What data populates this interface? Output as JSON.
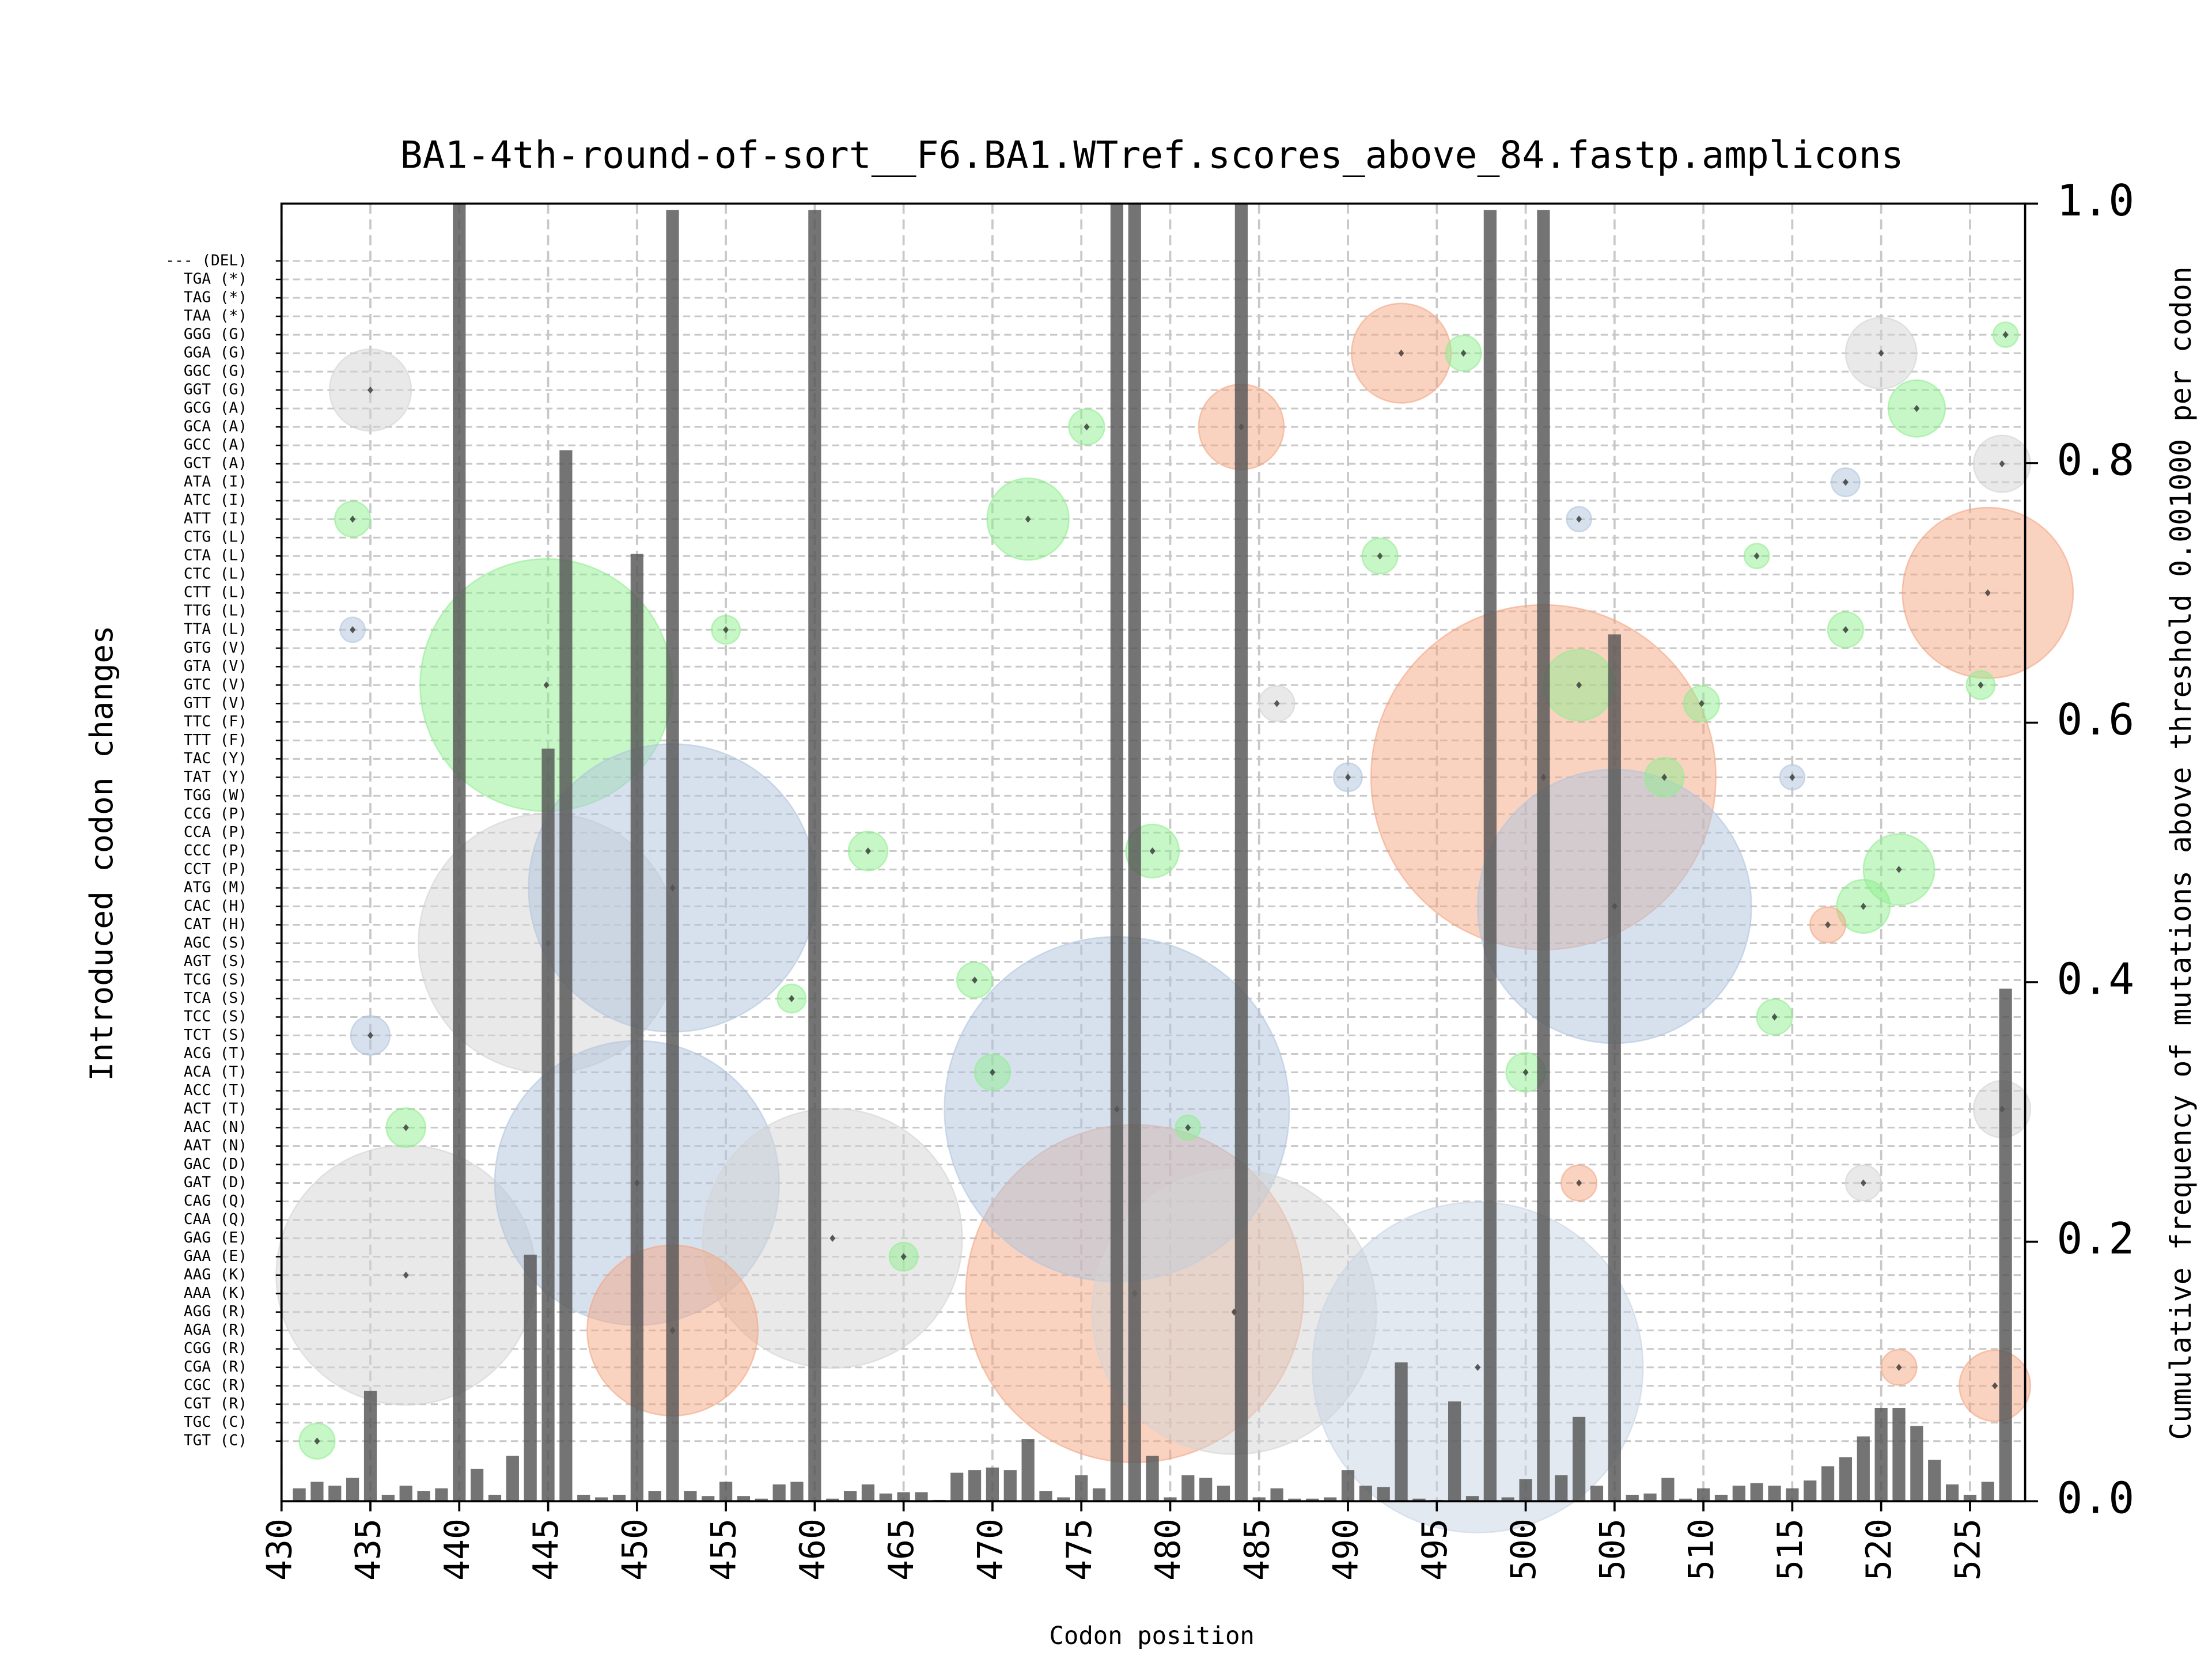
{
  "chart_data": [
    {
      "type": "bar",
      "title": "BA1-4th-round-of-sort__F6.BA1.WTref.scores_above_84.fastp.amplicons",
      "xlabel": "Codon position",
      "ylabel": "Cumulative frequency of mutations above threshold 0.001000 per codon",
      "color": "#555555",
      "x": [
        431,
        432,
        433,
        434,
        435,
        436,
        437,
        438,
        439,
        440,
        441,
        442,
        443,
        444,
        445,
        446,
        447,
        448,
        449,
        450,
        451,
        452,
        453,
        454,
        455,
        456,
        457,
        458,
        459,
        460,
        461,
        462,
        463,
        464,
        465,
        466,
        467,
        468,
        469,
        470,
        471,
        472,
        473,
        474,
        475,
        476,
        477,
        478,
        479,
        480,
        481,
        482,
        483,
        484,
        485,
        486,
        487,
        488,
        489,
        490,
        491,
        492,
        493,
        494,
        495,
        496,
        497,
        498,
        499,
        500,
        501,
        502,
        503,
        504,
        505,
        506,
        507,
        508,
        509,
        510,
        511,
        512,
        513,
        514,
        515,
        516,
        517,
        518,
        519,
        520,
        521,
        522,
        523,
        524,
        525,
        526,
        527
      ],
      "values": [
        0.01,
        0.015,
        0.012,
        0.018,
        0.085,
        0.005,
        0.012,
        0.008,
        0.01,
        1.0,
        0.025,
        0.005,
        0.035,
        0.19,
        0.58,
        0.81,
        0.005,
        0.003,
        0.005,
        0.73,
        0.008,
        0.995,
        0.008,
        0.004,
        0.015,
        0.004,
        0.002,
        0.013,
        0.015,
        0.995,
        0.002,
        0.008,
        0.013,
        0.006,
        0.007,
        0.007,
        0.001,
        0.022,
        0.024,
        0.026,
        0.024,
        0.048,
        0.008,
        0.003,
        0.02,
        0.01,
        1.0,
        1.0,
        0.035,
        0.003,
        0.02,
        0.018,
        0.012,
        1.0,
        0.003,
        0.01,
        0.002,
        0.002,
        0.003,
        0.024,
        0.012,
        0.011,
        0.107,
        0.002,
        0.001,
        0.077,
        0.004,
        0.995,
        0.003,
        0.017,
        0.995,
        0.02,
        0.065,
        0.012,
        0.668,
        0.005,
        0.006,
        0.018,
        0.002,
        0.01,
        0.005,
        0.012,
        0.014,
        0.012,
        0.01,
        0.016,
        0.027,
        0.034,
        0.05,
        0.072,
        0.072,
        0.058,
        0.032,
        0.013,
        0.005,
        0.015,
        0.395
      ],
      "xlim": [
        430,
        528.1
      ],
      "xticks": [
        430,
        435,
        440,
        445,
        450,
        455,
        460,
        465,
        470,
        475,
        480,
        485,
        490,
        495,
        500,
        505,
        510,
        515,
        520,
        525
      ],
      "ylim": [
        0,
        1
      ],
      "yticks": [
        {
          "value": 0,
          "label": "0.0"
        },
        {
          "value": 0.2,
          "label": "0.2"
        },
        {
          "value": 0.4,
          "label": "0.4"
        },
        {
          "value": 0.6,
          "label": "0.6"
        },
        {
          "value": 0.8,
          "label": "0.8"
        },
        {
          "value": 1,
          "label": "1.0"
        }
      ],
      "grid": true
    },
    {
      "type": "scatter",
      "ylabel": "Introduced codon changes",
      "categories": [
        "--- (DEL)",
        "TGA (*)",
        "TAG (*)",
        "TAA (*)",
        "GGG (G)",
        "GGA (G)",
        "GGC (G)",
        "GGT (G)",
        "GCG (A)",
        "GCA (A)",
        "GCC (A)",
        "GCT (A)",
        "ATA (I)",
        "ATC (I)",
        "ATT (I)",
        "CTG (L)",
        "CTA (L)",
        "CTC (L)",
        "CTT (L)",
        "TTG (L)",
        "TTA (L)",
        "GTG (V)",
        "GTA (V)",
        "GTC (V)",
        "GTT (V)",
        "TTC (F)",
        "TTT (F)",
        "TAC (Y)",
        "TAT (Y)",
        "TGG (W)",
        "CCG (P)",
        "CCA (P)",
        "CCC (P)",
        "CCT (P)",
        "ATG (M)",
        "CAC (H)",
        "CAT (H)",
        "AGC (S)",
        "AGT (S)",
        "TCG (S)",
        "TCA (S)",
        "TCC (S)",
        "TCT (S)",
        "ACG (T)",
        "ACA (T)",
        "ACC (T)",
        "ACT (T)",
        "AAC (N)",
        "AAT (N)",
        "GAC (D)",
        "GAT (D)",
        "CAG (Q)",
        "CAA (Q)",
        "GAG (E)",
        "GAA (E)",
        "AAG (K)",
        "AAA (K)",
        "AGG (R)",
        "AGA (R)",
        "CGG (R)",
        "CGA (R)",
        "CGC (R)",
        "CGT (R)",
        "TGC (C)",
        "TGT (C)"
      ],
      "points": [
        {
          "x": 437,
          "codon": "AAG (K)",
          "size": 7.3,
          "color": "#d3d3d3"
        },
        {
          "x": 445,
          "codon": "AGC (S)",
          "size": 7.3,
          "color": "#d3d3d3"
        },
        {
          "x": 450,
          "codon": "GAT (D)",
          "size": 8,
          "color": "#b0c4de"
        },
        {
          "x": 461,
          "codon": "GAG (E)",
          "size": 7.3,
          "color": "#d3d3d3"
        },
        {
          "x": 452,
          "codon": "AGA (R)",
          "size": 4.8,
          "color": "#f4a582"
        },
        {
          "x": 478,
          "codon": "AAA (K)",
          "size": 9.5,
          "color": "#f4a582"
        },
        {
          "x": 477,
          "codon": "ACT (T)",
          "size": 9.7,
          "color": "#b0c4de"
        },
        {
          "x": 483.6,
          "codon": "AGG (R)",
          "size": 8,
          "color": "#d3d3d3"
        },
        {
          "x": 497.3,
          "codon": "CGA (R)",
          "size": 9.3,
          "color": "#c8d4e4"
        },
        {
          "x": 444.9,
          "codon": "GTC (V)",
          "size": 7.1,
          "color": "#90ee90"
        },
        {
          "x": 452,
          "codon": "ATG (M)",
          "size": 8.1,
          "color": "#b0c4de"
        },
        {
          "x": 501,
          "codon": "TAT (Y)",
          "size": 9.7,
          "color": "#f4a582"
        },
        {
          "x": 505,
          "codon": "CAC (H)",
          "size": 7.7,
          "color": "#b0c4de"
        },
        {
          "x": 526,
          "codon": "CTT (L)",
          "size": 4.8,
          "color": "#f4a582"
        },
        {
          "x": 493,
          "codon": "GGA (G)",
          "size": 2.8,
          "color": "#f4a582"
        },
        {
          "x": 484,
          "codon": "GCA (A)",
          "size": 2.4,
          "color": "#f4a582"
        },
        {
          "x": 435,
          "codon": "GGT (G)",
          "size": 2.3,
          "color": "#d3d3d3"
        },
        {
          "x": 503,
          "codon": "GTC (V)",
          "size": 2,
          "color": "#90ee90"
        },
        {
          "x": 472,
          "codon": "ATT (I)",
          "size": 2.3,
          "color": "#90ee90"
        },
        {
          "x": 520,
          "codon": "GGA (G)",
          "size": 2,
          "color": "#d3d3d3"
        },
        {
          "x": 521,
          "codon": "CCT (P)",
          "size": 2,
          "color": "#90ee90"
        },
        {
          "x": 522,
          "codon": "GCG (A)",
          "size": 1.6,
          "color": "#90ee90"
        },
        {
          "x": 526.4,
          "codon": "CGC (R)",
          "size": 2,
          "color": "#f4a582"
        },
        {
          "x": 526.8,
          "codon": "GCT (A)",
          "size": 1.6,
          "color": "#d3d3d3"
        },
        {
          "x": 526.8,
          "codon": "ACT (T)",
          "size": 1.6,
          "color": "#d3d3d3"
        },
        {
          "x": 479,
          "codon": "CCC (P)",
          "size": 1.5,
          "color": "#90ee90"
        },
        {
          "x": 519,
          "codon": "CAC (H)",
          "size": 1.5,
          "color": "#90ee90"
        },
        {
          "x": 437,
          "codon": "AAC (N)",
          "size": 1.1,
          "color": "#90ee90"
        },
        {
          "x": 463,
          "codon": "CCC (P)",
          "size": 1.1,
          "color": "#90ee90"
        },
        {
          "x": 507.8,
          "codon": "TAT (Y)",
          "size": 1.1,
          "color": "#90ee90"
        },
        {
          "x": 509.9,
          "codon": "GTT (V)",
          "size": 1,
          "color": "#90ee90"
        },
        {
          "x": 500,
          "codon": "ACA (T)",
          "size": 1.1,
          "color": "#90ee90"
        },
        {
          "x": 470,
          "codon": "ACA (T)",
          "size": 1,
          "color": "#90ee90"
        },
        {
          "x": 518,
          "codon": "TTA (L)",
          "size": 1,
          "color": "#90ee90"
        },
        {
          "x": 514,
          "codon": "TCC (S)",
          "size": 1,
          "color": "#90ee90"
        },
        {
          "x": 491.8,
          "codon": "CTA (L)",
          "size": 1,
          "color": "#90ee90"
        },
        {
          "x": 455,
          "codon": "TTA (L)",
          "size": 0.8,
          "color": "#90ee90"
        },
        {
          "x": 432,
          "codon": "TGT (C)",
          "size": 1,
          "color": "#90ee90"
        },
        {
          "x": 496.5,
          "codon": "GGA (G)",
          "size": 1,
          "color": "#90ee90"
        },
        {
          "x": 475.3,
          "codon": "GCA (A)",
          "size": 1,
          "color": "#90ee90"
        },
        {
          "x": 503,
          "codon": "GAT (D)",
          "size": 1,
          "color": "#f4a582"
        },
        {
          "x": 521,
          "codon": "CGA (R)",
          "size": 1,
          "color": "#f4a582"
        },
        {
          "x": 517,
          "codon": "CAT (H)",
          "size": 1,
          "color": "#f4a582"
        },
        {
          "x": 515,
          "codon": "TAT (Y)",
          "size": 0.7,
          "color": "#b0c4de"
        },
        {
          "x": 490,
          "codon": "TAT (Y)",
          "size": 0.8,
          "color": "#b0c4de"
        },
        {
          "x": 486,
          "codon": "GTT (V)",
          "size": 1,
          "color": "#d3d3d3"
        },
        {
          "x": 519,
          "codon": "GAT (D)",
          "size": 1,
          "color": "#d3d3d3"
        },
        {
          "x": 435,
          "codon": "TCT (S)",
          "size": 1.1,
          "color": "#b0c4de"
        },
        {
          "x": 434,
          "codon": "TTA (L)",
          "size": 0.7,
          "color": "#b0c4de"
        },
        {
          "x": 525.6,
          "codon": "GTC (V)",
          "size": 0.8,
          "color": "#90ee90"
        },
        {
          "x": 527,
          "codon": "GGG (G)",
          "size": 0.7,
          "color": "#90ee90"
        },
        {
          "x": 469,
          "codon": "TCG (S)",
          "size": 1,
          "color": "#90ee90"
        },
        {
          "x": 458.7,
          "codon": "TCA (S)",
          "size": 0.8,
          "color": "#90ee90"
        },
        {
          "x": 465,
          "codon": "GAA (E)",
          "size": 0.8,
          "color": "#90ee90"
        },
        {
          "x": 481,
          "codon": "AAC (N)",
          "size": 0.7,
          "color": "#90ee90"
        },
        {
          "x": 513,
          "codon": "CTA (L)",
          "size": 0.7,
          "color": "#90ee90"
        },
        {
          "x": 518,
          "codon": "ATA (I)",
          "size": 0.8,
          "color": "#b0c4de"
        },
        {
          "x": 503,
          "codon": "ATT (I)",
          "size": 0.7,
          "color": "#b0c4de"
        },
        {
          "x": 434,
          "codon": "ATT (I)",
          "size": 1,
          "color": "#90ee90"
        }
      ]
    }
  ]
}
